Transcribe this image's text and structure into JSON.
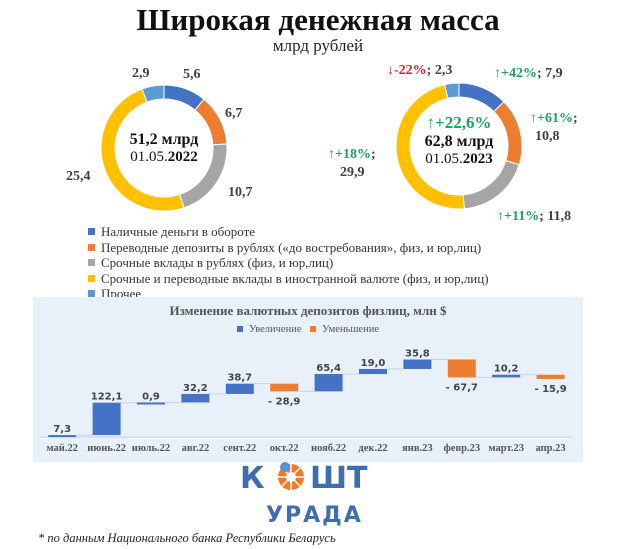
{
  "title": "Широкая денежная масса",
  "subtitle": "млрд рублей",
  "colors": {
    "cash": "#4472c4",
    "transfer": "#ed7d31",
    "term_rub": "#a5a5a5",
    "foreign": "#ffc000",
    "other": "#5b9bd5",
    "increase": "#4472c4",
    "decrease": "#ed7d31",
    "up": "#1aa35b",
    "down": "#d02020"
  },
  "chart_data": [
    {
      "type": "pie",
      "subtype": "donut",
      "center_text": {
        "total": "51,2 млрд",
        "date_prefix": "01.05.",
        "year": "2022"
      },
      "categories": [
        "Наличные деньги в обороте",
        "Переводные депозиты в рублях («до востребования», физ, и юр,лиц)",
        "Срочные вклады в рублях (физ, и юр,лиц)",
        "Срочные и переводные вклады в иностранной валюте (физ, и юр,лиц)",
        "Прочее"
      ],
      "values": [
        5.6,
        6.7,
        10.7,
        25.4,
        2.9
      ],
      "labels": [
        "5,6",
        "6,7",
        "10,7",
        "25,4",
        "2,9"
      ]
    },
    {
      "type": "pie",
      "subtype": "donut",
      "center_text": {
        "change": "↑+22,6%",
        "total": "62,8 млрд",
        "date_prefix": "01.05.",
        "year": "2023"
      },
      "categories": [
        "Наличные деньги в обороте",
        "Переводные депозиты в рублях («до востребования», физ, и юр,лиц)",
        "Срочные вклады в рублях (физ, и юр,лиц)",
        "Срочные и переводные вклады в иностранной валюте (физ, и юр,лиц)",
        "Прочее"
      ],
      "values": [
        7.9,
        10.8,
        11.8,
        29.9,
        2.3
      ],
      "labels": [
        "7,9",
        "10,8",
        "11,8",
        "29,9",
        "2,3"
      ],
      "changes": [
        "↑+42%",
        "↑+61%",
        "↑+11%",
        "↑+18%",
        "↓-22%"
      ]
    },
    {
      "type": "bar",
      "subtype": "waterfall",
      "title": "Изменение валютных депозитов физлиц, млн $",
      "legend": [
        "Увеличение",
        "Уменьшение"
      ],
      "legend_position": "top",
      "categories": [
        "май.22",
        "июнь.22",
        "июль.22",
        "авг.22",
        "сент.22",
        "окт.22",
        "нояб.22",
        "дек.22",
        "янв.23",
        "февр.23",
        "март.23",
        "апр.23"
      ],
      "values": [
        7.3,
        122.1,
        0.9,
        32.2,
        38.7,
        -28.9,
        65.4,
        19.0,
        35.8,
        -67.7,
        10.2,
        -15.9
      ],
      "labels": [
        "7,3",
        "122,1",
        "0,9",
        "32,2",
        "38,7",
        "- 28,9",
        "65,4",
        "19,0",
        "35,8",
        "- 67,7",
        "10,2",
        "- 15,9"
      ]
    }
  ],
  "logo": {
    "line1": "КОШТ",
    "line2": "УРАДА"
  },
  "footnote": "* по данным Национального банка Республики Беларусь"
}
